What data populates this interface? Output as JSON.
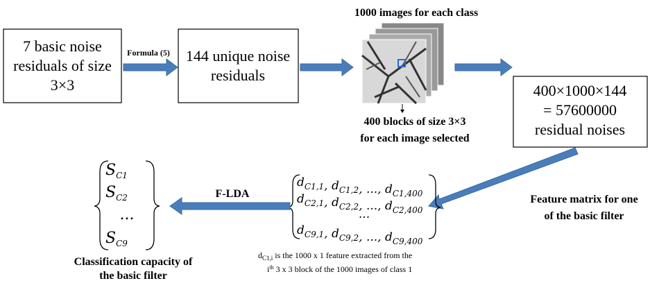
{
  "box1": {
    "lines": [
      "7 basic noise",
      "residuals of size",
      "3×3"
    ]
  },
  "formula_label": "Formula (5)",
  "box2": {
    "lines": [
      "144 unique noise",
      "residuals"
    ]
  },
  "images_title": "1000 images for each class",
  "blocks_caption": {
    "lines": [
      "400 blocks of size 3×3",
      "for each image selected"
    ]
  },
  "box3": {
    "lines": [
      "400×1000×144",
      "= 57600000",
      "residual noises"
    ]
  },
  "feature_caption": {
    "lines": [
      "Feature matrix for one",
      "of the basic filter"
    ]
  },
  "matrix": {
    "symbol": "d",
    "separator": ", ",
    "rows": [
      [
        {
          "sub": "C1,1"
        },
        {
          "sub": "C1,2"
        },
        {
          "text": "..."
        },
        {
          "sub": "C1,400"
        }
      ],
      [
        {
          "sub": "C2,1"
        },
        {
          "sub": "C2,2"
        },
        {
          "text": "..."
        },
        {
          "sub": "C2,400"
        }
      ],
      [
        {
          "text": "..."
        }
      ],
      [
        {
          "sub": "C9,1"
        },
        {
          "sub": "C9,2"
        },
        {
          "text": "..."
        },
        {
          "sub": "C9,400"
        }
      ]
    ]
  },
  "flda_label": "F-LDA",
  "vector": {
    "symbol": "S",
    "entries": [
      {
        "sub": "C1"
      },
      {
        "sub": "C2"
      },
      {
        "text": "..."
      },
      {
        "sub": "C9"
      }
    ]
  },
  "classification_caption": {
    "lines": [
      "Classification capacity of",
      "the basic filter"
    ]
  },
  "footnote": {
    "line1": {
      "base": "d",
      "sub": "C1,i",
      "rest": "  is the 1000 x 1 feature extracted from the"
    },
    "line2": {
      "base": "i",
      "sup": "th",
      "rest": " 3 x 3 block of the 1000 images of class 1"
    }
  }
}
